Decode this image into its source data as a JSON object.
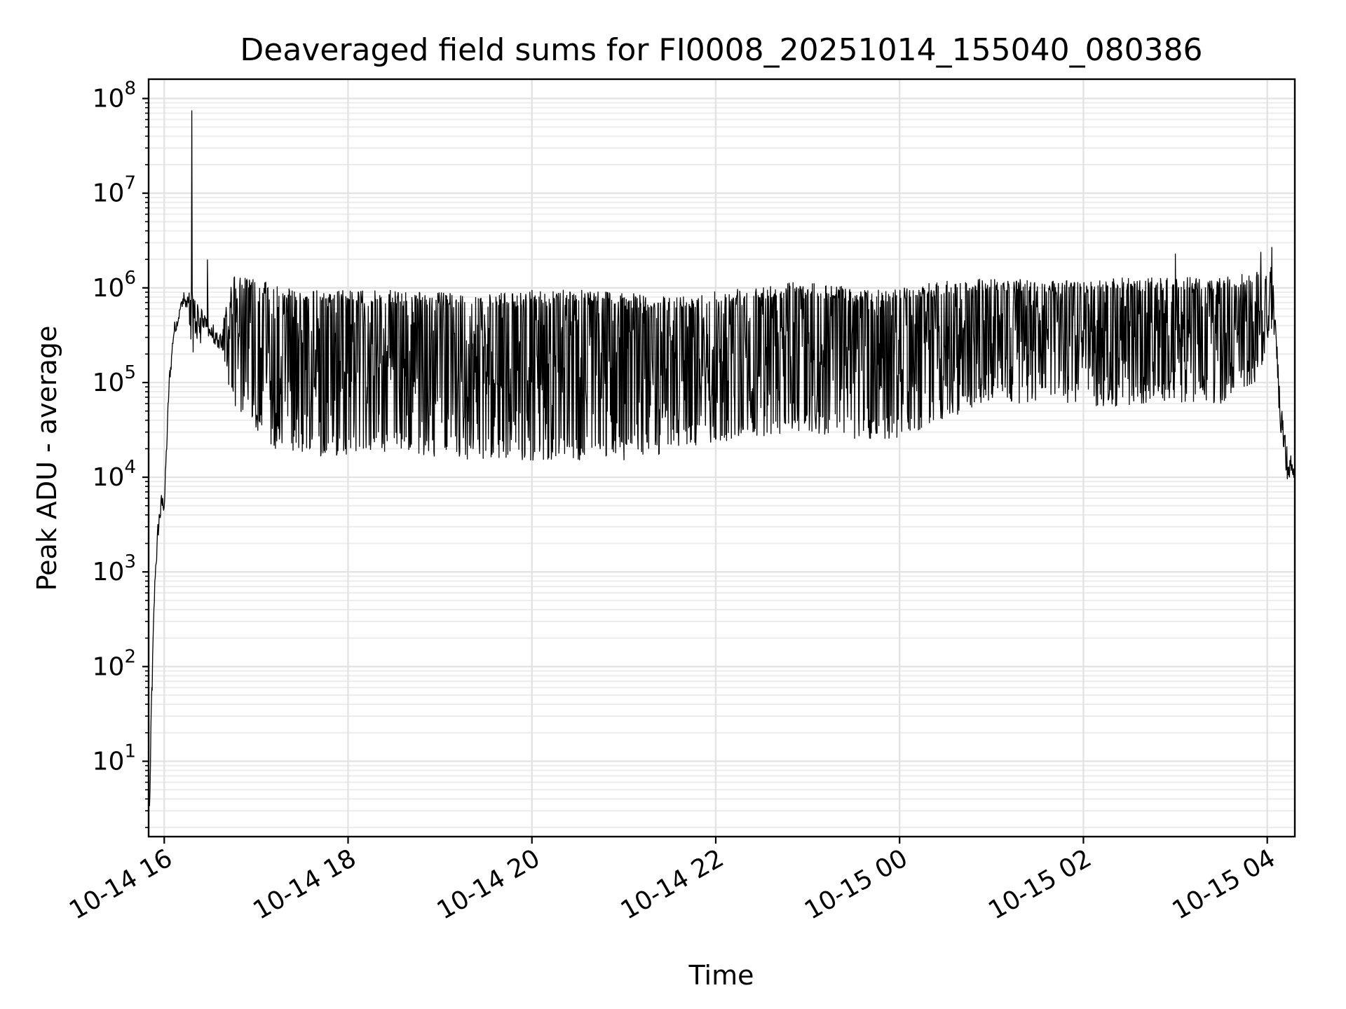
{
  "chart_data": {
    "type": "line",
    "title": "Deaveraged field sums for FI0008_20251014_155040_080386",
    "xlabel": "Time",
    "ylabel": "Peak ADU - average",
    "yscale": "log",
    "ylim": [
      1.6,
      160000000
    ],
    "xlim_hours": [
      15.83,
      28.3
    ],
    "x_ticks": [
      {
        "hour": 16,
        "label": "10-14 16"
      },
      {
        "hour": 18,
        "label": "10-14 18"
      },
      {
        "hour": 20,
        "label": "10-14 20"
      },
      {
        "hour": 22,
        "label": "10-14 22"
      },
      {
        "hour": 24,
        "label": "10-15 00"
      },
      {
        "hour": 26,
        "label": "10-15 02"
      },
      {
        "hour": 28,
        "label": "10-15 04"
      }
    ],
    "y_ticks": [
      {
        "exp": 1,
        "base": "10",
        "sup": "1"
      },
      {
        "exp": 2,
        "base": "10",
        "sup": "2"
      },
      {
        "exp": 3,
        "base": "10",
        "sup": "3"
      },
      {
        "exp": 4,
        "base": "10",
        "sup": "4"
      },
      {
        "exp": 5,
        "base": "10",
        "sup": "5"
      },
      {
        "exp": 6,
        "base": "10",
        "sup": "6"
      },
      {
        "exp": 7,
        "base": "10",
        "sup": "7"
      },
      {
        "exp": 8,
        "base": "10",
        "sup": "8"
      }
    ],
    "grid": true,
    "series": [
      {
        "name": "deaveraged field sum",
        "color": "#000000",
        "envelope_note": "dense oscillating trace; approximate upper/lower envelope read from the plot",
        "envelope": [
          {
            "hour": 15.84,
            "high": 4,
            "low": 3
          },
          {
            "hour": 15.86,
            "high": 100,
            "low": 20
          },
          {
            "hour": 15.9,
            "high": 1500,
            "low": 800
          },
          {
            "hour": 15.95,
            "high": 8000,
            "low": 2500
          },
          {
            "hour": 16.0,
            "high": 8000,
            "low": 4000
          },
          {
            "hour": 16.05,
            "high": 150000,
            "low": 60000
          },
          {
            "hour": 16.1,
            "high": 500000,
            "low": 250000
          },
          {
            "hour": 16.2,
            "high": 900000,
            "low": 600000
          },
          {
            "hour": 16.3,
            "high": 1000000,
            "low": 200000
          },
          {
            "hour": 16.45,
            "high": 500000,
            "low": 300000
          },
          {
            "hour": 16.6,
            "high": 300000,
            "low": 200000
          },
          {
            "hour": 16.75,
            "high": 1400000,
            "low": 60000
          },
          {
            "hour": 16.9,
            "high": 1300000,
            "low": 40000
          },
          {
            "hour": 17.2,
            "high": 1100000,
            "low": 20000
          },
          {
            "hour": 17.6,
            "high": 950000,
            "low": 16000
          },
          {
            "hour": 18.0,
            "high": 950000,
            "low": 17000
          },
          {
            "hour": 18.5,
            "high": 950000,
            "low": 18000
          },
          {
            "hour": 19.0,
            "high": 900000,
            "low": 16000
          },
          {
            "hour": 19.5,
            "high": 850000,
            "low": 15000
          },
          {
            "hour": 20.0,
            "high": 950000,
            "low": 15000
          },
          {
            "hour": 20.5,
            "high": 1000000,
            "low": 15000
          },
          {
            "hour": 21.0,
            "high": 900000,
            "low": 15000
          },
          {
            "hour": 21.5,
            "high": 800000,
            "low": 18000
          },
          {
            "hour": 22.0,
            "high": 950000,
            "low": 22000
          },
          {
            "hour": 22.5,
            "high": 1100000,
            "low": 25000
          },
          {
            "hour": 23.0,
            "high": 1200000,
            "low": 30000
          },
          {
            "hour": 23.5,
            "high": 1000000,
            "low": 25000
          },
          {
            "hour": 24.0,
            "high": 1000000,
            "low": 25000
          },
          {
            "hour": 24.5,
            "high": 1200000,
            "low": 40000
          },
          {
            "hour": 25.0,
            "high": 1300000,
            "low": 60000
          },
          {
            "hour": 25.5,
            "high": 1200000,
            "low": 60000
          },
          {
            "hour": 26.0,
            "high": 1200000,
            "low": 55000
          },
          {
            "hour": 26.5,
            "high": 1300000,
            "low": 55000
          },
          {
            "hour": 27.0,
            "high": 1300000,
            "low": 60000
          },
          {
            "hour": 27.5,
            "high": 1300000,
            "low": 60000
          },
          {
            "hour": 27.9,
            "high": 1500000,
            "low": 100000
          },
          {
            "hour": 28.05,
            "high": 1700000,
            "low": 300000
          },
          {
            "hour": 28.15,
            "high": 100000,
            "low": 20000
          },
          {
            "hour": 28.2,
            "high": 40000,
            "low": 5000
          },
          {
            "hour": 28.29,
            "high": 15000,
            "low": 8000
          }
        ],
        "spikes": [
          {
            "hour": 16.3,
            "value": 75000000
          },
          {
            "hour": 16.47,
            "value": 2000000
          },
          {
            "hour": 27.0,
            "value": 2300000
          },
          {
            "hour": 27.93,
            "value": 2400000
          },
          {
            "hour": 28.05,
            "value": 2700000
          }
        ]
      }
    ]
  }
}
